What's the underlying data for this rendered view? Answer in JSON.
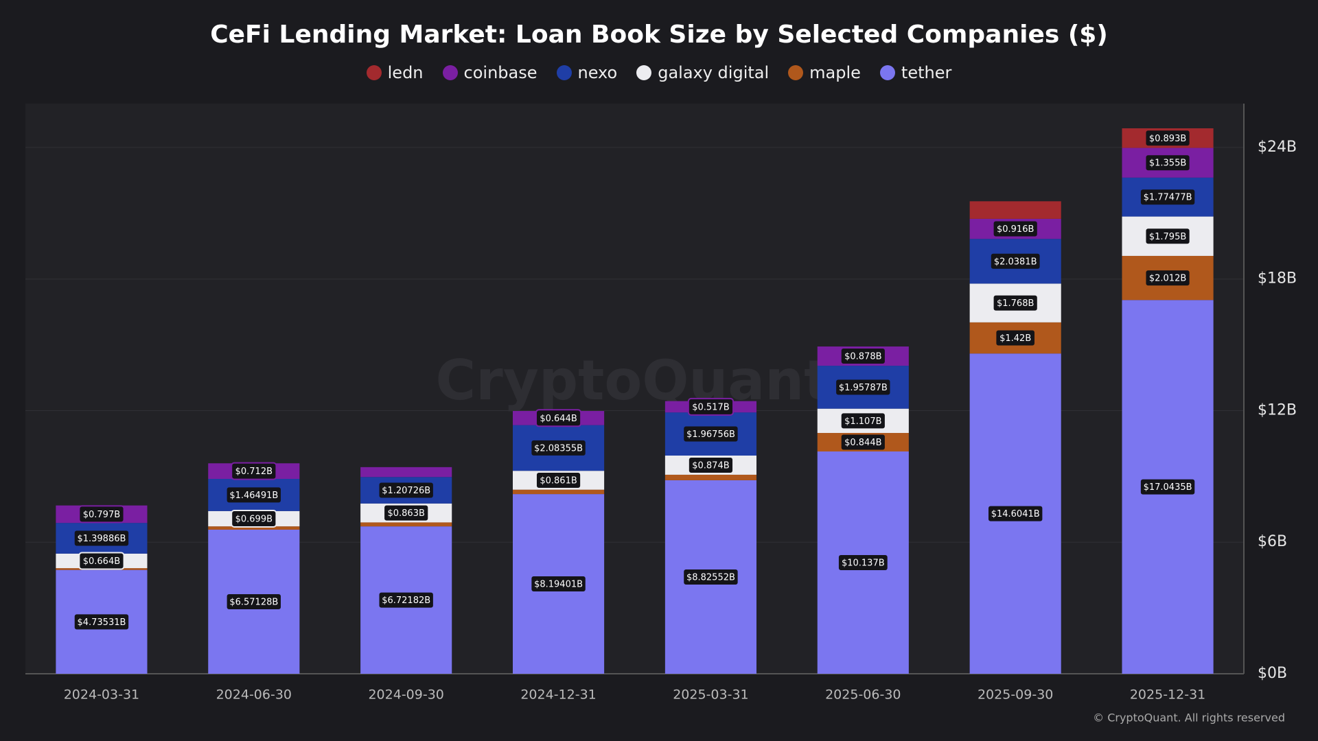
{
  "chart_data": {
    "type": "stacked_bar",
    "title": "CeFi Lending Market: Loan Book Size by Selected Companies ($)",
    "watermark": "CryptoQuant",
    "footer": "© CryptoQuant. All rights reserved",
    "categories": [
      "2024-03-31",
      "2024-06-30",
      "2024-09-30",
      "2024-12-31",
      "2025-03-31",
      "2025-06-30",
      "2025-09-30",
      "2025-12-31"
    ],
    "ylim": [
      0,
      26
    ],
    "yticks": [
      {
        "value": 0,
        "label": "$0B"
      },
      {
        "value": 6,
        "label": "$6B"
      },
      {
        "value": 12,
        "label": "$12B"
      },
      {
        "value": 18,
        "label": "$18B"
      },
      {
        "value": 24,
        "label": "$24B"
      }
    ],
    "grid": true,
    "series": [
      {
        "name": "tether",
        "color": "#7b76f0",
        "values": [
          4.73531,
          6.57128,
          6.72182,
          8.19401,
          8.82552,
          10.137,
          14.6041,
          17.0435
        ],
        "value_labels": [
          "$4.73531B",
          "$6.57128B",
          "$6.72182B",
          "$8.19401B",
          "$8.82552B",
          "$10.137B",
          "$14.6041B",
          "$17.0435B"
        ]
      },
      {
        "name": "maple",
        "color": "#b0581c",
        "values": [
          0.08,
          0.15,
          0.18,
          0.2,
          0.25,
          0.844,
          1.42,
          2.012
        ],
        "value_labels": [
          null,
          null,
          null,
          null,
          null,
          "$0.844B",
          "$1.42B",
          "$2.012B"
        ]
      },
      {
        "name": "galaxy digital",
        "color": "#ececf0",
        "values": [
          0.664,
          0.699,
          0.863,
          0.861,
          0.874,
          1.107,
          1.768,
          1.795
        ],
        "value_labels": [
          "$0.664B",
          "$0.699B",
          "$0.863B",
          "$0.861B",
          "$0.874B",
          "$1.107B",
          "$1.768B",
          "$1.795B"
        ]
      },
      {
        "name": "nexo",
        "color": "#1f3ea6",
        "values": [
          1.39886,
          1.46491,
          1.20726,
          2.08355,
          1.96756,
          1.95787,
          2.0381,
          1.77477
        ],
        "value_labels": [
          "$1.39886B",
          "$1.46491B",
          "$1.20726B",
          "$2.08355B",
          "$1.96756B",
          "$1.95787B",
          "$2.0381B",
          "$1.77477B"
        ]
      },
      {
        "name": "coinbase",
        "color": "#7a1fa2",
        "values": [
          0.797,
          0.712,
          0.45,
          0.644,
          0.517,
          0.878,
          0.916,
          1.355
        ],
        "value_labels": [
          "$0.797B",
          "$0.712B",
          null,
          "$0.644B",
          "$0.517B",
          "$0.878B",
          "$0.916B",
          "$1.355B"
        ]
      },
      {
        "name": "ledn",
        "color": "#a32a2e",
        "values": [
          0,
          0,
          0,
          0,
          0,
          0,
          0.8,
          0.893
        ],
        "value_labels": [
          null,
          null,
          null,
          null,
          null,
          null,
          null,
          "$0.893B"
        ]
      }
    ],
    "legend_order": [
      5,
      4,
      3,
      2,
      1,
      0
    ]
  }
}
